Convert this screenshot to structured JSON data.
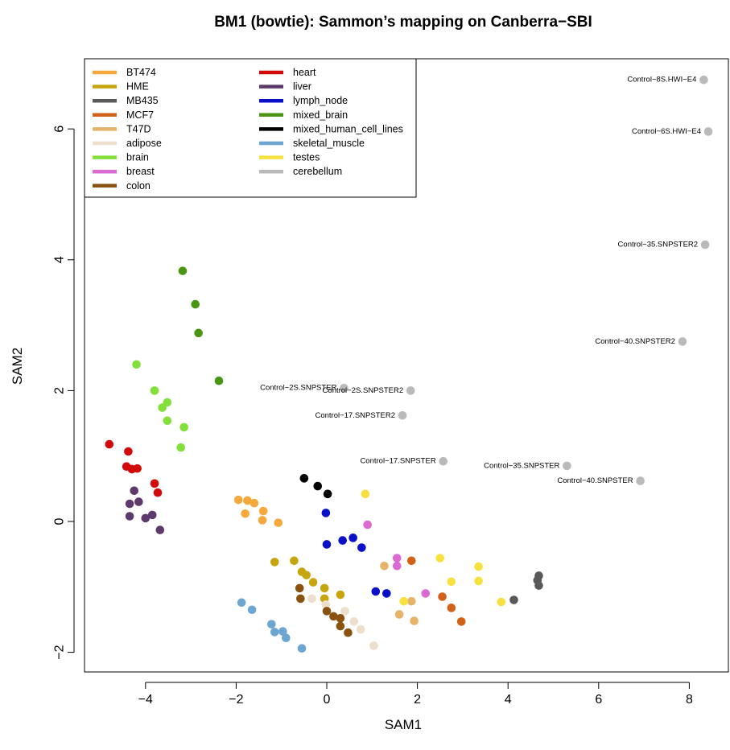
{
  "chart_data": {
    "type": "scatter",
    "title": "BM1 (bowtie): Sammon’s mapping on Canberra−SBI",
    "xlabel": "SAM1",
    "ylabel": "SAM2",
    "xlim": [
      -5.3,
      8.9
    ],
    "ylim": [
      -2.3,
      7.3
    ],
    "xticks": [
      {
        "v": -4,
        "label": "−4"
      },
      {
        "v": -2,
        "label": "−2"
      },
      {
        "v": 0,
        "label": "0"
      },
      {
        "v": 2,
        "label": "2"
      },
      {
        "v": 4,
        "label": "4"
      },
      {
        "v": 6,
        "label": "6"
      },
      {
        "v": 8,
        "label": "8"
      }
    ],
    "yticks": [
      {
        "v": -2,
        "label": "−2"
      },
      {
        "v": 0,
        "label": "0"
      },
      {
        "v": 2,
        "label": "2"
      },
      {
        "v": 4,
        "label": "4"
      },
      {
        "v": 6,
        "label": "6"
      }
    ],
    "grid": false,
    "legend_position": "top-left",
    "series": [
      {
        "name": "BT474",
        "color": "#F5A83B",
        "points": [
          [
            -1.95,
            0.33
          ],
          [
            -1.75,
            0.32
          ],
          [
            -1.6,
            0.28
          ],
          [
            -1.8,
            0.12
          ],
          [
            -1.4,
            0.16
          ],
          [
            -1.42,
            0.02
          ],
          [
            -1.07,
            -0.02
          ]
        ]
      },
      {
        "name": "HME",
        "color": "#C6A50E",
        "points": [
          [
            -1.15,
            -0.62
          ],
          [
            -0.72,
            -0.6
          ],
          [
            -0.55,
            -0.77
          ],
          [
            -0.45,
            -0.82
          ],
          [
            -0.3,
            -0.93
          ],
          [
            -0.05,
            -1.02
          ],
          [
            0.3,
            -1.12
          ],
          [
            -0.05,
            -1.18
          ]
        ]
      },
      {
        "name": "MB435",
        "color": "#595959",
        "points": [
          [
            4.68,
            -0.83
          ],
          [
            4.65,
            -0.9
          ],
          [
            4.68,
            -0.98
          ],
          [
            4.13,
            -1.2
          ]
        ]
      },
      {
        "name": "MCF7",
        "color": "#D2621A",
        "points": [
          [
            1.87,
            -0.6
          ],
          [
            2.55,
            -1.15
          ],
          [
            2.75,
            -1.32
          ],
          [
            2.97,
            -1.53
          ]
        ]
      },
      {
        "name": "T47D",
        "color": "#E5B36A",
        "points": [
          [
            1.27,
            -0.68
          ],
          [
            1.87,
            -1.22
          ],
          [
            1.6,
            -1.42
          ],
          [
            1.93,
            -1.52
          ]
        ]
      },
      {
        "name": "adipose",
        "color": "#EDDFCB",
        "points": [
          [
            -0.33,
            -1.18
          ],
          [
            -0.02,
            -1.27
          ],
          [
            0.4,
            -1.37
          ],
          [
            0.6,
            -1.53
          ],
          [
            0.75,
            -1.65
          ],
          [
            1.04,
            -1.9
          ]
        ]
      },
      {
        "name": "brain",
        "color": "#83E03B",
        "points": [
          [
            -4.2,
            2.4
          ],
          [
            -3.8,
            2.0
          ],
          [
            -3.52,
            1.82
          ],
          [
            -3.63,
            1.74
          ],
          [
            -3.52,
            1.54
          ],
          [
            -3.15,
            1.44
          ],
          [
            -3.22,
            1.13
          ]
        ]
      },
      {
        "name": "breast",
        "color": "#D96BD3",
        "points": [
          [
            0.9,
            -0.05
          ],
          [
            1.55,
            -0.56
          ],
          [
            1.55,
            -0.68
          ],
          [
            2.18,
            -1.1
          ]
        ]
      },
      {
        "name": "colon",
        "color": "#8A5210",
        "points": [
          [
            -0.6,
            -1.02
          ],
          [
            -0.58,
            -1.18
          ],
          [
            0.0,
            -1.37
          ],
          [
            0.15,
            -1.45
          ],
          [
            0.3,
            -1.48
          ],
          [
            0.3,
            -1.6
          ],
          [
            0.47,
            -1.7
          ]
        ]
      },
      {
        "name": "heart",
        "color": "#D20A0A",
        "points": [
          [
            -4.8,
            1.18
          ],
          [
            -4.38,
            1.07
          ],
          [
            -4.42,
            0.84
          ],
          [
            -4.3,
            0.8
          ],
          [
            -4.18,
            0.81
          ],
          [
            -3.8,
            0.58
          ],
          [
            -3.73,
            0.44
          ]
        ]
      },
      {
        "name": "liver",
        "color": "#5E3A6C",
        "points": [
          [
            -4.25,
            0.47
          ],
          [
            -4.15,
            0.3
          ],
          [
            -4.35,
            0.27
          ],
          [
            -4.35,
            0.08
          ],
          [
            -3.85,
            0.1
          ],
          [
            -4.0,
            0.05
          ],
          [
            -3.68,
            -0.13
          ]
        ]
      },
      {
        "name": "lymph_node",
        "color": "#0A10C8",
        "points": [
          [
            -0.02,
            0.13
          ],
          [
            0.58,
            -0.25
          ],
          [
            0.35,
            -0.29
          ],
          [
            0.77,
            -0.4
          ],
          [
            0.0,
            -0.35
          ],
          [
            1.08,
            -1.07
          ],
          [
            1.32,
            -1.1
          ]
        ]
      },
      {
        "name": "mixed_brain",
        "color": "#4A9613",
        "points": [
          [
            -3.18,
            3.83
          ],
          [
            -2.9,
            3.32
          ],
          [
            -2.83,
            2.88
          ],
          [
            -2.38,
            2.15
          ]
        ]
      },
      {
        "name": "mixed_human_cell_lines",
        "color": "#000000",
        "points": [
          [
            -0.5,
            0.66
          ],
          [
            -0.2,
            0.54
          ],
          [
            0.02,
            0.42
          ]
        ]
      },
      {
        "name": "skeletal_muscle",
        "color": "#6EA6D2",
        "points": [
          [
            -1.88,
            -1.24
          ],
          [
            -1.65,
            -1.35
          ],
          [
            -1.22,
            -1.57
          ],
          [
            -1.15,
            -1.69
          ],
          [
            -0.97,
            -1.68
          ],
          [
            -0.9,
            -1.78
          ],
          [
            -0.55,
            -1.94
          ]
        ]
      },
      {
        "name": "testes",
        "color": "#F7E140",
        "points": [
          [
            0.85,
            0.42
          ],
          [
            2.5,
            -0.56
          ],
          [
            3.35,
            -0.69
          ],
          [
            2.75,
            -0.92
          ],
          [
            3.35,
            -0.91
          ],
          [
            1.7,
            -1.22
          ],
          [
            3.85,
            -1.23
          ]
        ]
      },
      {
        "name": "cerebellum",
        "color": "#BABABA",
        "points": [
          [
            8.32,
            6.75,
            "Control−8S.HWI−E4"
          ],
          [
            8.42,
            5.96,
            "Control−6S.HWI−E4"
          ],
          [
            8.35,
            4.23,
            "Control−35.SNPSTER2"
          ],
          [
            7.85,
            2.75,
            "Control−40.SNPSTER2"
          ],
          [
            0.38,
            2.04,
            "Control−2S.SNPSTER"
          ],
          [
            1.85,
            2.0,
            "Control−2S.SNPSTER2"
          ],
          [
            1.67,
            1.62,
            "Control−17.SNPSTER2"
          ],
          [
            2.57,
            0.92,
            "Control−17.SNPSTER"
          ],
          [
            5.3,
            0.85,
            "Control−35.SNPSTER"
          ],
          [
            6.92,
            0.62,
            "Control−40.SNPSTER"
          ]
        ]
      }
    ]
  }
}
